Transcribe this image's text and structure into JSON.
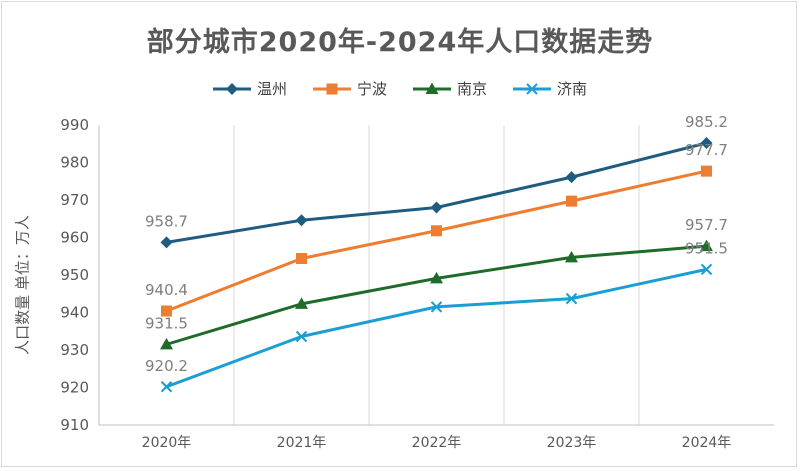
{
  "chart_data": {
    "type": "line",
    "title": "部分城市2020年-2024年人口数据走势",
    "ylabel": "人口数量 单位：万人",
    "xlabel": "",
    "categories": [
      "2020年",
      "2021年",
      "2022年",
      "2023年",
      "2024年"
    ],
    "ylim": [
      910,
      990
    ],
    "yticks": [
      910,
      920,
      930,
      940,
      950,
      960,
      970,
      980,
      990
    ],
    "grid": "vertical",
    "legend_position": "top",
    "series": [
      {
        "name": "温州",
        "values": [
          958.7,
          964.6,
          968.0,
          976.1,
          985.2
        ],
        "color": "#1f5c80",
        "marker": "diamond",
        "labels": {
          "0": "958.7",
          "4": "985.2"
        }
      },
      {
        "name": "宁波",
        "values": [
          940.4,
          954.4,
          961.8,
          969.7,
          977.7
        ],
        "color": "#ed7d31",
        "marker": "square",
        "labels": {
          "0": "940.4",
          "4": "977.7"
        }
      },
      {
        "name": "南京",
        "values": [
          931.5,
          942.3,
          949.1,
          954.7,
          957.7
        ],
        "color": "#1e6b2a",
        "marker": "triangle",
        "labels": {
          "0": "931.5",
          "4": "957.7"
        }
      },
      {
        "name": "济南",
        "values": [
          920.2,
          933.6,
          941.5,
          943.7,
          951.5
        ],
        "color": "#1a9ed3",
        "marker": "x",
        "labels": {
          "0": "920.2",
          "4": "951.5"
        }
      }
    ]
  }
}
